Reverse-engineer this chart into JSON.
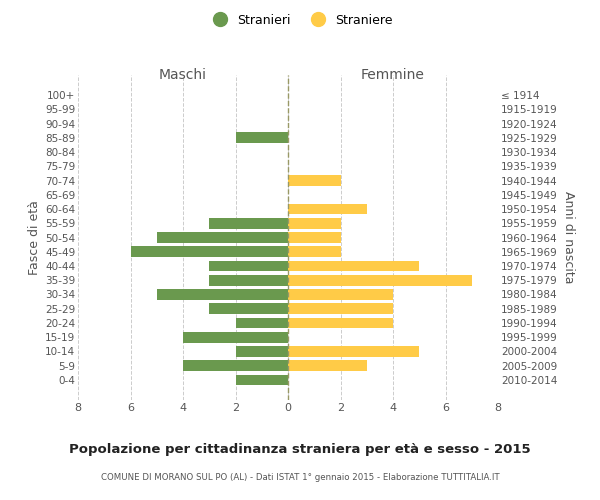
{
  "age_groups": [
    "100+",
    "95-99",
    "90-94",
    "85-89",
    "80-84",
    "75-79",
    "70-74",
    "65-69",
    "60-64",
    "55-59",
    "50-54",
    "45-49",
    "40-44",
    "35-39",
    "30-34",
    "25-29",
    "20-24",
    "15-19",
    "10-14",
    "5-9",
    "0-4"
  ],
  "birth_years": [
    "≤ 1914",
    "1915-1919",
    "1920-1924",
    "1925-1929",
    "1930-1934",
    "1935-1939",
    "1940-1944",
    "1945-1949",
    "1950-1954",
    "1955-1959",
    "1960-1964",
    "1965-1969",
    "1970-1974",
    "1975-1979",
    "1980-1984",
    "1985-1989",
    "1990-1994",
    "1995-1999",
    "2000-2004",
    "2005-2009",
    "2010-2014"
  ],
  "males": [
    0,
    0,
    0,
    2,
    0,
    0,
    0,
    0,
    0,
    3,
    5,
    6,
    3,
    3,
    5,
    3,
    2,
    4,
    2,
    4,
    2
  ],
  "females": [
    0,
    0,
    0,
    0,
    0,
    0,
    2,
    0,
    3,
    2,
    2,
    2,
    5,
    7,
    4,
    4,
    4,
    0,
    5,
    3,
    0
  ],
  "male_color": "#6a994e",
  "female_color": "#ffcb47",
  "background_color": "#ffffff",
  "grid_color": "#cccccc",
  "title": "Popolazione per cittadinanza straniera per età e sesso - 2015",
  "subtitle": "COMUNE DI MORANO SUL PO (AL) - Dati ISTAT 1° gennaio 2015 - Elaborazione TUTTITALIA.IT",
  "xlabel_left": "Maschi",
  "xlabel_right": "Femmine",
  "ylabel_left": "Fasce di età",
  "ylabel_right": "Anni di nascita",
  "legend_male": "Stranieri",
  "legend_female": "Straniere",
  "xlim": 8
}
